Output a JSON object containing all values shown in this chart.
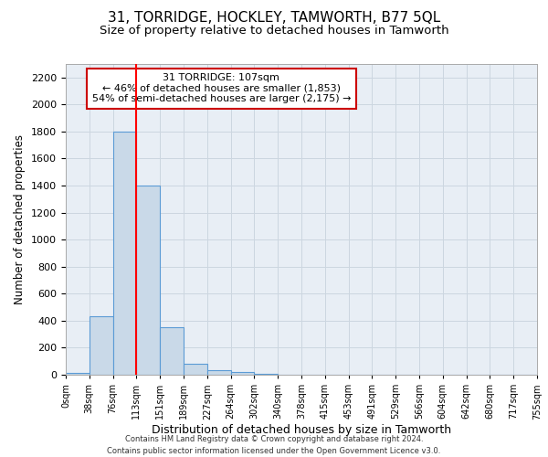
{
  "title": "31, TORRIDGE, HOCKLEY, TAMWORTH, B77 5QL",
  "subtitle": "Size of property relative to detached houses in Tamworth",
  "xlabel": "Distribution of detached houses by size in Tamworth",
  "ylabel": "Number of detached properties",
  "bin_labels": [
    "0sqm",
    "38sqm",
    "76sqm",
    "113sqm",
    "151sqm",
    "189sqm",
    "227sqm",
    "264sqm",
    "302sqm",
    "340sqm",
    "378sqm",
    "415sqm",
    "453sqm",
    "491sqm",
    "529sqm",
    "566sqm",
    "604sqm",
    "642sqm",
    "680sqm",
    "717sqm",
    "755sqm"
  ],
  "bar_heights": [
    15,
    430,
    1800,
    1400,
    350,
    80,
    35,
    20,
    5,
    0,
    0,
    0,
    0,
    0,
    0,
    0,
    0,
    0,
    0,
    0
  ],
  "bar_color": "#c9d9e8",
  "bar_edge_color": "#5b9bd5",
  "annotation_line1": "31 TORRIDGE: 107sqm",
  "annotation_line2": "← 46% of detached houses are smaller (1,853)",
  "annotation_line3": "54% of semi-detached houses are larger (2,175) →",
  "annotation_box_color": "#ffffff",
  "annotation_border_color": "#cc0000",
  "ylim": [
    0,
    2300
  ],
  "yticks": [
    0,
    200,
    400,
    600,
    800,
    1000,
    1200,
    1400,
    1600,
    1800,
    2000,
    2200
  ],
  "grid_color": "#ccd6e0",
  "bg_color": "#e8eef5",
  "footer_line1": "Contains HM Land Registry data © Crown copyright and database right 2024.",
  "footer_line2": "Contains public sector information licensed under the Open Government Licence v3.0.",
  "title_fontsize": 11,
  "subtitle_fontsize": 9.5,
  "xlabel_fontsize": 9,
  "ylabel_fontsize": 8.5
}
